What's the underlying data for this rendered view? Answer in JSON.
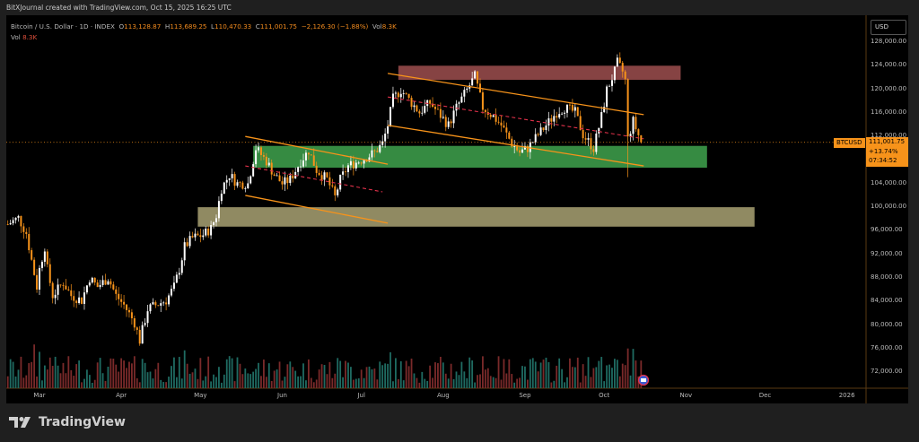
{
  "header": {
    "attribution": "BitXJournal created with TradingView.com, Oct 15, 2025 16:25 UTC"
  },
  "legend": {
    "symbol": "Bitcoin / U.S. Dollar · 1D · INDEX",
    "open_label": "O",
    "open": "113,128.87",
    "high_label": "H",
    "high": "113,689.25",
    "low_label": "L",
    "low": "110,470.33",
    "close_label": "C",
    "close": "111,001.75",
    "change": "−2,126.30 (−1.88%)",
    "vol_label": "Vol",
    "vol": "8.3K",
    "vol_row_label": "Vol",
    "vol_row_value": "8.3K"
  },
  "price_axis": {
    "currency": "USD",
    "ticks": [
      "128,000.00",
      "124,000.00",
      "120,000.00",
      "116,000.00",
      "112,000.00",
      "104,000.00",
      "100,000.00",
      "96,000.00",
      "92,000.00",
      "88,000.00",
      "84,000.00",
      "80,000.00",
      "76,000.00",
      "72,000.00"
    ],
    "last_symbol": "BTCUSD",
    "last_price": "111,001.75",
    "last_change": "+13.74%",
    "countdown": "07:34:52"
  },
  "time_axis": {
    "ticks": [
      "Mar",
      "Apr",
      "May",
      "Jun",
      "Jul",
      "Aug",
      "Sep",
      "Oct",
      "Nov",
      "Dec",
      "2026"
    ]
  },
  "footer": {
    "brand": "TradingView"
  },
  "colors": {
    "up": "#ffffff",
    "down": "#f7931a",
    "vol_up": "#1f6b62",
    "vol_down": "#7a2a2a",
    "trendline": "#f7931a",
    "midline": "#e0314a",
    "resistance_zone": "#b35a5a",
    "support_zone": "#3fa34d",
    "lower_zone": "#a9a273"
  },
  "chart_data": {
    "type": "candlestick",
    "interval": "1D",
    "yscale": "linear",
    "ylim": [
      70000,
      130000
    ],
    "xlim": [
      "2025-02-17",
      "2026-01-10"
    ],
    "grid": false,
    "closes": [
      [
        "2025-02-17",
        97100
      ],
      [
        "2025-02-21",
        98200
      ],
      [
        "2025-02-24",
        95600
      ],
      [
        "2025-02-26",
        91000
      ],
      [
        "2025-02-28",
        86500
      ],
      [
        "2025-03-01",
        89500
      ],
      [
        "2025-03-03",
        93300
      ],
      [
        "2025-03-04",
        89500
      ],
      [
        "2025-03-06",
        85000
      ],
      [
        "2025-03-10",
        87200
      ],
      [
        "2025-03-13",
        85000
      ],
      [
        "2025-03-17",
        84200
      ],
      [
        "2025-03-20",
        88000
      ],
      [
        "2025-03-23",
        86500
      ],
      [
        "2025-03-27",
        88000
      ],
      [
        "2025-03-30",
        85000
      ],
      [
        "2025-04-02",
        83400
      ],
      [
        "2025-04-06",
        80400
      ],
      [
        "2025-04-08",
        77400
      ],
      [
        "2025-04-11",
        82700
      ],
      [
        "2025-04-14",
        83400
      ],
      [
        "2025-04-18",
        84200
      ],
      [
        "2025-04-21",
        86500
      ],
      [
        "2025-04-23",
        89500
      ],
      [
        "2025-04-25",
        93300
      ],
      [
        "2025-04-28",
        94800
      ],
      [
        "2025-05-02",
        95300
      ],
      [
        "2025-05-05",
        96400
      ],
      [
        "2025-05-07",
        98600
      ],
      [
        "2025-05-09",
        103200
      ],
      [
        "2025-05-12",
        105500
      ],
      [
        "2025-05-15",
        104000
      ],
      [
        "2025-05-19",
        104000
      ],
      [
        "2025-05-22",
        110000
      ],
      [
        "2025-05-26",
        107800
      ],
      [
        "2025-05-29",
        105500
      ],
      [
        "2025-06-01",
        104000
      ],
      [
        "2025-06-04",
        104700
      ],
      [
        "2025-06-08",
        107800
      ],
      [
        "2025-06-11",
        109600
      ],
      [
        "2025-06-14",
        106300
      ],
      [
        "2025-06-18",
        104700
      ],
      [
        "2025-06-21",
        101700
      ],
      [
        "2025-06-23",
        104700
      ],
      [
        "2025-06-26",
        107000
      ],
      [
        "2025-06-30",
        107800
      ],
      [
        "2025-07-03",
        108500
      ],
      [
        "2025-07-06",
        109300
      ],
      [
        "2025-07-09",
        110800
      ],
      [
        "2025-07-11",
        113900
      ],
      [
        "2025-07-13",
        118400
      ],
      [
        "2025-07-16",
        119900
      ],
      [
        "2025-07-20",
        117700
      ],
      [
        "2025-07-23",
        116100
      ],
      [
        "2025-07-27",
        117700
      ],
      [
        "2025-07-30",
        116100
      ],
      [
        "2025-08-03",
        113900
      ],
      [
        "2025-08-06",
        116900
      ],
      [
        "2025-08-10",
        119900
      ],
      [
        "2025-08-13",
        122200
      ],
      [
        "2025-08-16",
        116900
      ],
      [
        "2025-08-20",
        115400
      ],
      [
        "2025-08-23",
        113900
      ],
      [
        "2025-08-27",
        110800
      ],
      [
        "2025-08-30",
        109300
      ],
      [
        "2025-09-02",
        110000
      ],
      [
        "2025-09-06",
        112300
      ],
      [
        "2025-09-09",
        113900
      ],
      [
        "2025-09-13",
        116100
      ],
      [
        "2025-09-16",
        116900
      ],
      [
        "2025-09-20",
        116100
      ],
      [
        "2025-09-23",
        112300
      ],
      [
        "2025-09-27",
        110000
      ],
      [
        "2025-09-30",
        115400
      ],
      [
        "2025-10-02",
        119900
      ],
      [
        "2025-10-05",
        123000
      ],
      [
        "2025-10-06",
        124500
      ],
      [
        "2025-10-08",
        123000
      ],
      [
        "2025-10-09",
        121500
      ],
      [
        "2025-10-10",
        111600
      ],
      [
        "2025-10-12",
        114600
      ],
      [
        "2025-10-15",
        111001.75
      ]
    ],
    "zones": [
      {
        "name": "resistance",
        "from": "2025-07-15",
        "to": "2025-10-30",
        "top": 124000,
        "bottom": 121600
      },
      {
        "name": "support",
        "from": "2025-05-21",
        "to": "2025-11-09",
        "top": 110400,
        "bottom": 106700
      },
      {
        "name": "lower-support",
        "from": "2025-04-30",
        "to": "2025-11-27",
        "top": 100000,
        "bottom": 96700
      }
    ],
    "trendlines": [
      {
        "name": "channel1-upper",
        "style": "solid",
        "p1": [
          "2025-05-18",
          112000
        ],
        "p2": [
          "2025-07-11",
          107300
        ]
      },
      {
        "name": "channel1-lower",
        "style": "solid",
        "p1": [
          "2025-05-18",
          102000
        ],
        "p2": [
          "2025-07-11",
          97300
        ]
      },
      {
        "name": "channel1-mid",
        "style": "dashed",
        "p1": [
          "2025-05-18",
          107000
        ],
        "p2": [
          "2025-07-09",
          102600
        ]
      },
      {
        "name": "channel2-upper",
        "style": "solid",
        "p1": [
          "2025-07-11",
          122700
        ],
        "p2": [
          "2025-10-16",
          115700
        ]
      },
      {
        "name": "channel2-lower",
        "style": "solid",
        "p1": [
          "2025-07-11",
          113900
        ],
        "p2": [
          "2025-10-16",
          107000
        ]
      },
      {
        "name": "channel2-mid",
        "style": "dashed",
        "p1": [
          "2025-07-11",
          118700
        ],
        "p2": [
          "2025-10-16",
          111600
        ]
      }
    ],
    "last_price": 111001.75
  }
}
